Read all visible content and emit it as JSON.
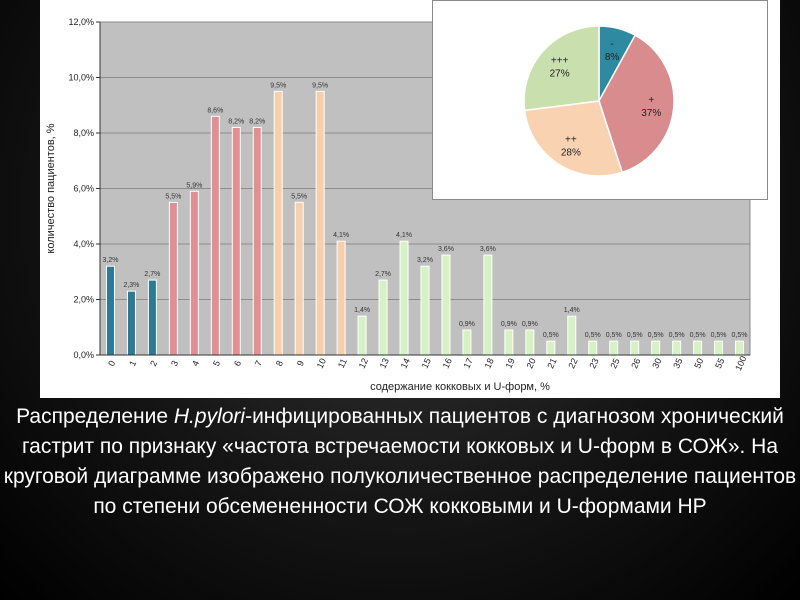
{
  "chart_data": [
    {
      "type": "bar",
      "categories": [
        "0",
        "1",
        "2",
        "3",
        "4",
        "5",
        "6",
        "7",
        "8",
        "9",
        "10",
        "11",
        "12",
        "13",
        "14",
        "15",
        "16",
        "17",
        "18",
        "19",
        "20",
        "21",
        "22",
        "23",
        "25",
        "26",
        "30",
        "35",
        "50",
        "55",
        "100"
      ],
      "values": [
        3.2,
        2.3,
        2.7,
        5.5,
        5.9,
        8.6,
        8.2,
        8.2,
        9.5,
        5.5,
        9.5,
        4.1,
        1.4,
        2.7,
        4.1,
        3.2,
        3.6,
        0.9,
        3.6,
        0.9,
        0.9,
        0.5,
        1.4,
        0.5,
        0.5,
        0.5,
        0.5,
        0.5,
        0.5,
        0.5,
        0.5
      ],
      "data_labels": [
        "3,2%",
        "2,3%",
        "2,7%",
        "5,5%",
        "5,9%",
        "8,6%",
        "8,2%",
        "8,2%",
        "9,5%",
        "5,5%",
        "9,5%",
        "4,1%",
        "1,4%",
        "2,7%",
        "4,1%",
        "3,2%",
        "3,6%",
        "0,9%",
        "3,6%",
        "0,9%",
        "0,9%",
        "0,5%",
        "1,4%",
        "0,5%",
        "0,5%",
        "0,5%",
        "0,5%",
        "0,5%",
        "0,5%",
        "0,5%",
        "0,5%"
      ],
      "colors": [
        "#2e7a94",
        "#2e7a94",
        "#2e7a94",
        "#e08f92",
        "#e08f92",
        "#e08f92",
        "#e08f92",
        "#e08f92",
        "#f7cfaa",
        "#f7cfaa",
        "#f7cfaa",
        "#f7cfaa",
        "#d6f2c4",
        "#d6f2c4",
        "#d6f2c4",
        "#d6f2c4",
        "#d6f2c4",
        "#d6f2c4",
        "#d6f2c4",
        "#d6f2c4",
        "#d6f2c4",
        "#d6f2c4",
        "#d6f2c4",
        "#d6f2c4",
        "#d6f2c4",
        "#d6f2c4",
        "#d6f2c4",
        "#d6f2c4",
        "#d6f2c4",
        "#d6f2c4",
        "#d6f2c4"
      ],
      "ylabel": "количество пациентов, %",
      "xlabel": "содержание кокковых и U-форм, %",
      "ylim": [
        0,
        12
      ],
      "yticks": [
        0,
        2,
        4,
        6,
        8,
        10,
        12
      ],
      "ytick_labels": [
        "0,0%",
        "2,0%",
        "4,0%",
        "6,0%",
        "8,0%",
        "10,0%",
        "12,0%"
      ],
      "grid": true,
      "plot_background": "#c0c0c0"
    },
    {
      "type": "pie",
      "slices": [
        {
          "name": "-",
          "value": 8,
          "label": "8%",
          "color": "#2e8aa0"
        },
        {
          "name": "+",
          "value": 37,
          "label": "37%",
          "color": "#d98c8e"
        },
        {
          "name": "++",
          "value": 28,
          "label": "28%",
          "color": "#f9d2b2"
        },
        {
          "name": "+++",
          "value": 27,
          "label": "27%",
          "color": "#c9dfae"
        }
      ]
    }
  ],
  "caption": {
    "part1": "Распределение ",
    "italic": "H.pylori",
    "part2": "-инфицированных пациентов с диагнозом хронический гастрит по признаку «частота встречаемости кокковых и U-форм в СОЖ». На круговой диаграмме изображено полуколичественное распределение пациентов по степени обсемененности СОЖ кокковыми и U-формами HP"
  }
}
